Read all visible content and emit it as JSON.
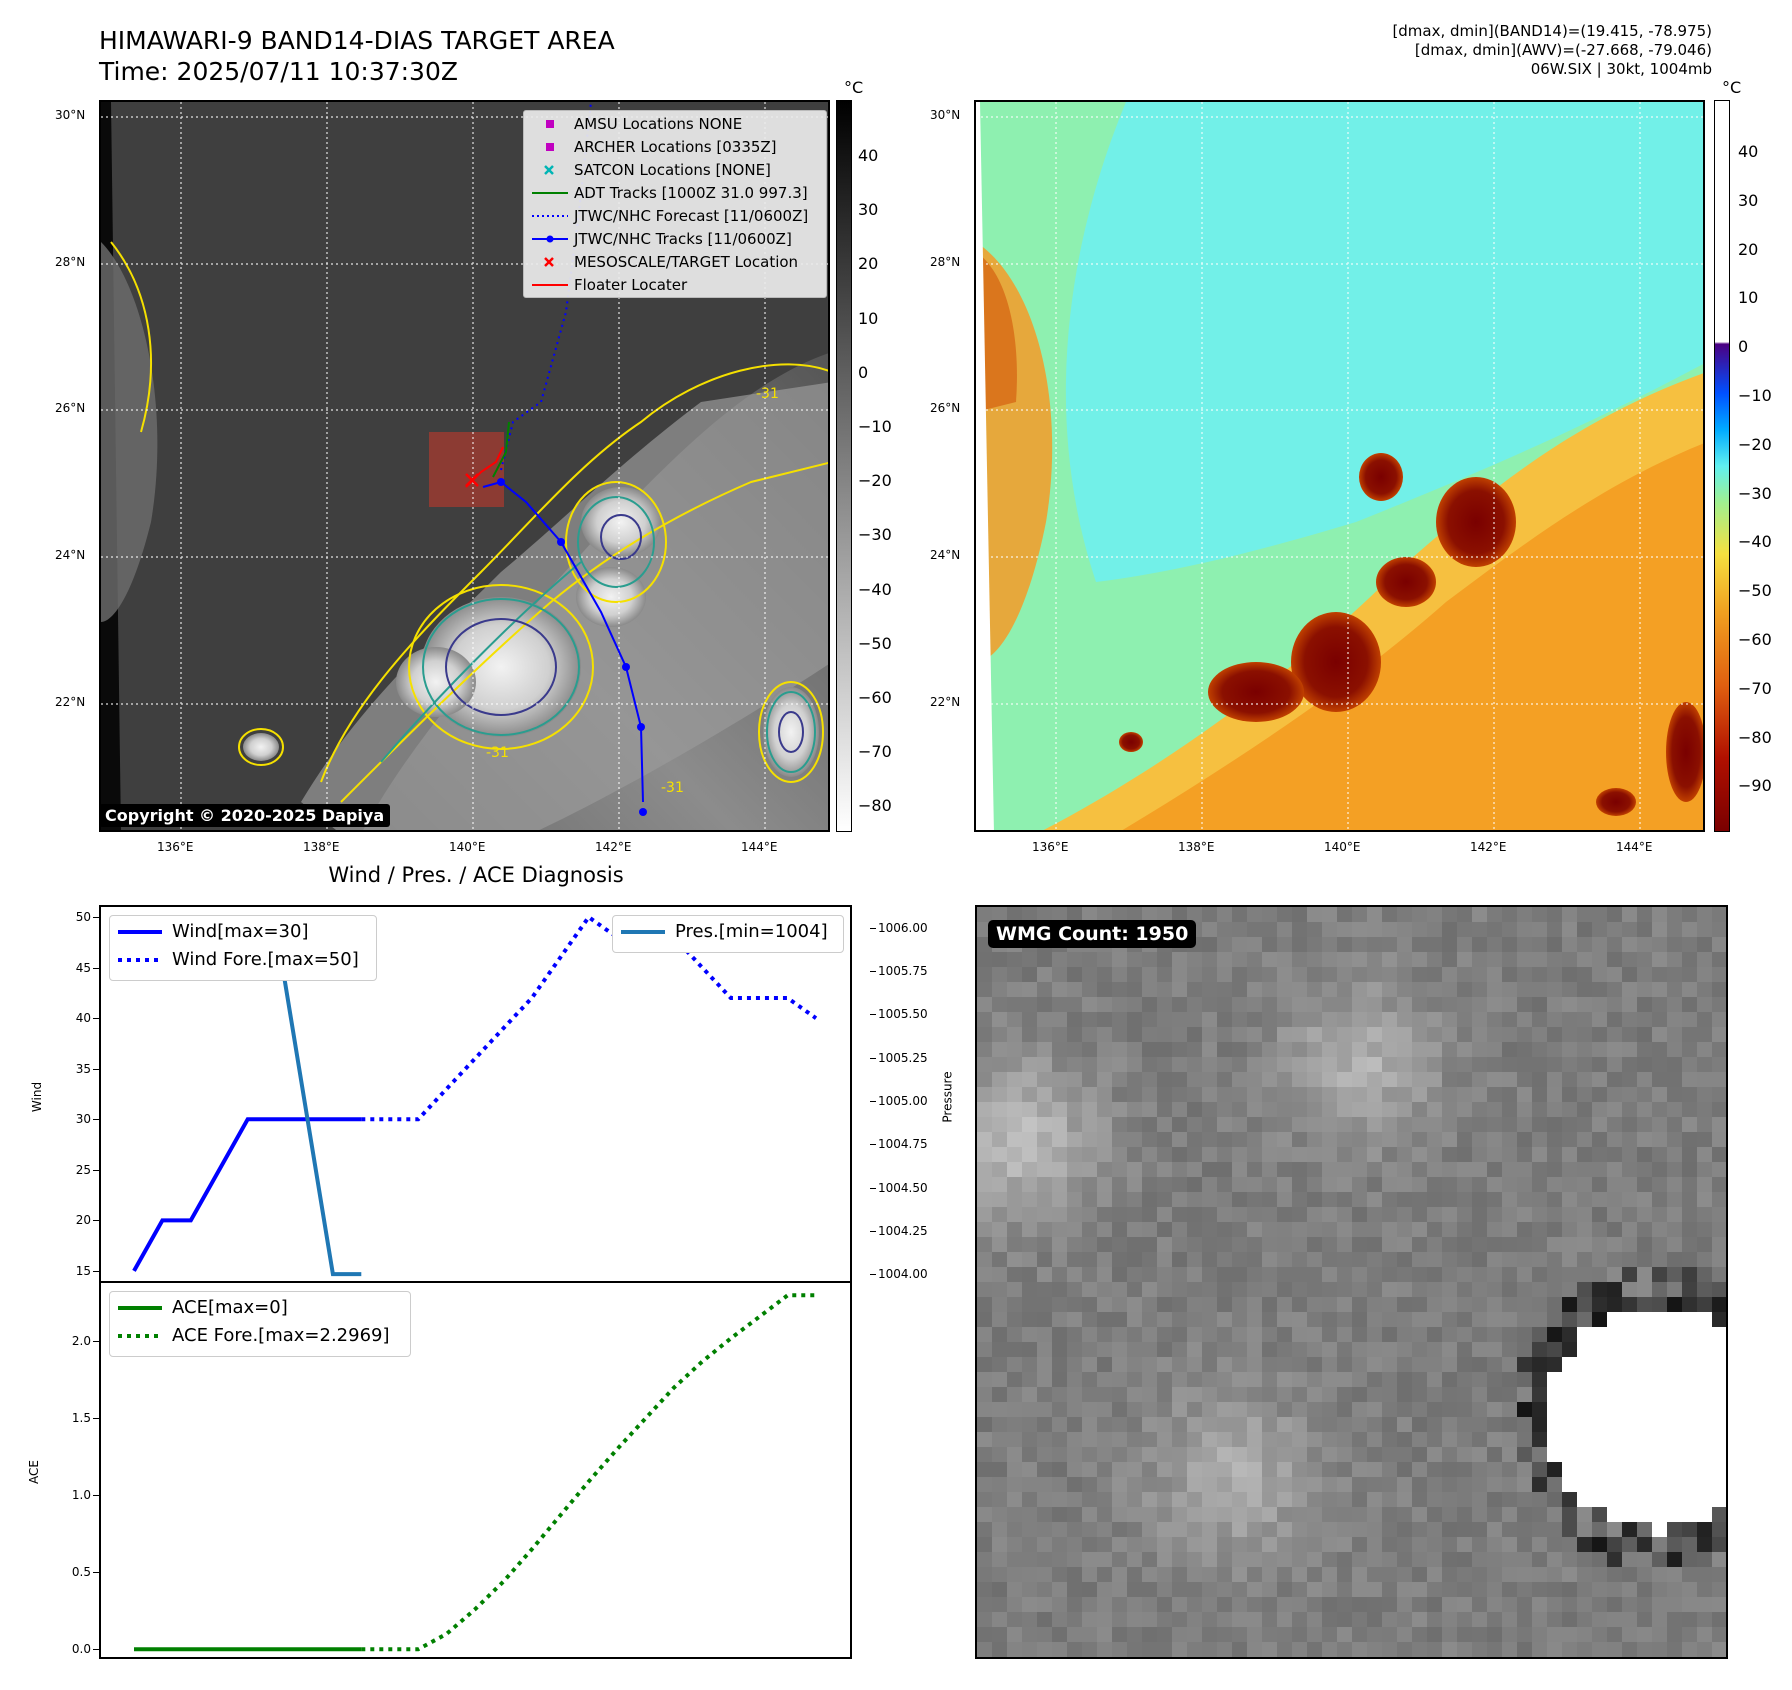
{
  "header": {
    "title_line1": "HIMAWARI-9 BAND14-DIAS TARGET AREA",
    "title_line2": "Time: 2025/07/11 10:37:30Z",
    "info_line1": "[dmax, dmin](BAND14)=(19.415, -78.975)",
    "info_line2": "[dmax, dmin](AWV)=(-27.668, -79.046)",
    "info_line3": "06W.SIX | 30kt, 1004mb"
  },
  "map": {
    "lat_labels": [
      "30°N",
      "28°N",
      "26°N",
      "24°N",
      "22°N"
    ],
    "lon_labels": [
      "136°E",
      "138°E",
      "140°E",
      "142°E",
      "144°E"
    ],
    "colorbar_unit": "°C",
    "ir_colorbar_ticks": [
      "40",
      "30",
      "20",
      "10",
      "0",
      "−10",
      "−20",
      "−30",
      "−40",
      "−50",
      "−60",
      "−70",
      "−80"
    ],
    "awv_colorbar_ticks": [
      "40",
      "30",
      "20",
      "10",
      "0",
      "−10",
      "−20",
      "−30",
      "−40",
      "−50",
      "−60",
      "−70",
      "−80",
      "−90"
    ],
    "copyright": "Copyright © 2020-2025 Dapiya",
    "contour_label": "-31",
    "legend": [
      {
        "label": "AMSU Locations NONE",
        "color": "#c000c0",
        "symbol": "square"
      },
      {
        "label": "ARCHER Locations [0335Z]",
        "color": "#c000c0",
        "symbol": "square"
      },
      {
        "label": "SATCON Locations [NONE]",
        "color": "#00b5b5",
        "symbol": "x"
      },
      {
        "label": "ADT Tracks [1000Z 31.0 997.3]",
        "color": "#008000",
        "symbol": "line"
      },
      {
        "label": "JTWC/NHC Forecast [11/0600Z]",
        "color": "#0000ff",
        "symbol": "dotted"
      },
      {
        "label": "JTWC/NHC Tracks [11/0600Z]",
        "color": "#0000ff",
        "symbol": "line-dot"
      },
      {
        "label": "MESOSCALE/TARGET Location",
        "color": "#ff0000",
        "symbol": "x"
      },
      {
        "label": "Floater Locater",
        "color": "#ff0000",
        "symbol": "line"
      }
    ]
  },
  "diagnosis": {
    "title": "Wind / Pres. / ACE Diagnosis",
    "wind_ylabel": "Wind",
    "pres_ylabel": "Pressure",
    "ace_ylabel": "ACE",
    "wmg_label": "WMG Count: 1950"
  },
  "chart_data": [
    {
      "type": "line",
      "xlim": [
        0,
        24
      ],
      "ylim": [
        14,
        51
      ],
      "y2lim": [
        1003.96,
        1006.12
      ],
      "y_ticks": [
        "50",
        "45",
        "40",
        "35",
        "30",
        "25",
        "20",
        "15"
      ],
      "y2_ticks": [
        "1006.00",
        "1005.75",
        "1005.50",
        "1005.25",
        "1005.00",
        "1004.75",
        "1004.50",
        "1004.25",
        "1004.00"
      ],
      "series": [
        {
          "name": "Wind[max=30]",
          "axis": "left",
          "color": "#0000ff",
          "style": "solid",
          "x": [
            0,
            1,
            2,
            4,
            5,
            6,
            7,
            8
          ],
          "y": [
            15,
            20,
            20,
            30,
            30,
            30,
            30,
            30
          ]
        },
        {
          "name": "Wind Fore.[max=50]",
          "axis": "left",
          "color": "#0000ff",
          "style": "dotted",
          "x": [
            8,
            9,
            10,
            11,
            12,
            13,
            14,
            15,
            16,
            17,
            18,
            19,
            20,
            21,
            22,
            23,
            24
          ],
          "y": [
            30,
            30,
            30,
            33,
            36,
            39,
            42,
            46,
            50,
            48,
            48,
            48,
            45,
            42,
            42,
            42,
            40
          ]
        },
        {
          "name": "Pres.[min=1004]",
          "axis": "right",
          "color": "#1f77b4",
          "style": "solid",
          "x": [
            0,
            4,
            5,
            6,
            7,
            8
          ],
          "y": [
            1006.0,
            1006.0,
            1006.0,
            1005.0,
            1004.0,
            1004.0
          ]
        }
      ]
    },
    {
      "type": "line",
      "xlim": [
        0,
        24
      ],
      "ylim": [
        -0.05,
        2.38
      ],
      "y_ticks": [
        "2.0",
        "1.5",
        "1.0",
        "0.5",
        "0.0"
      ],
      "series": [
        {
          "name": "ACE[max=0]",
          "color": "#008000",
          "style": "solid",
          "x": [
            0,
            8
          ],
          "y": [
            0,
            0
          ]
        },
        {
          "name": "ACE Fore.[max=2.2969]",
          "color": "#008000",
          "style": "dotted",
          "x": [
            8,
            9,
            10,
            11,
            12,
            13,
            14,
            15,
            16,
            17,
            18,
            19,
            20,
            21,
            22,
            23,
            24
          ],
          "y": [
            0,
            0,
            0,
            0.1,
            0.26,
            0.44,
            0.65,
            0.87,
            1.09,
            1.3,
            1.5,
            1.7,
            1.87,
            2.02,
            2.16,
            2.3,
            2.3
          ]
        }
      ]
    }
  ]
}
